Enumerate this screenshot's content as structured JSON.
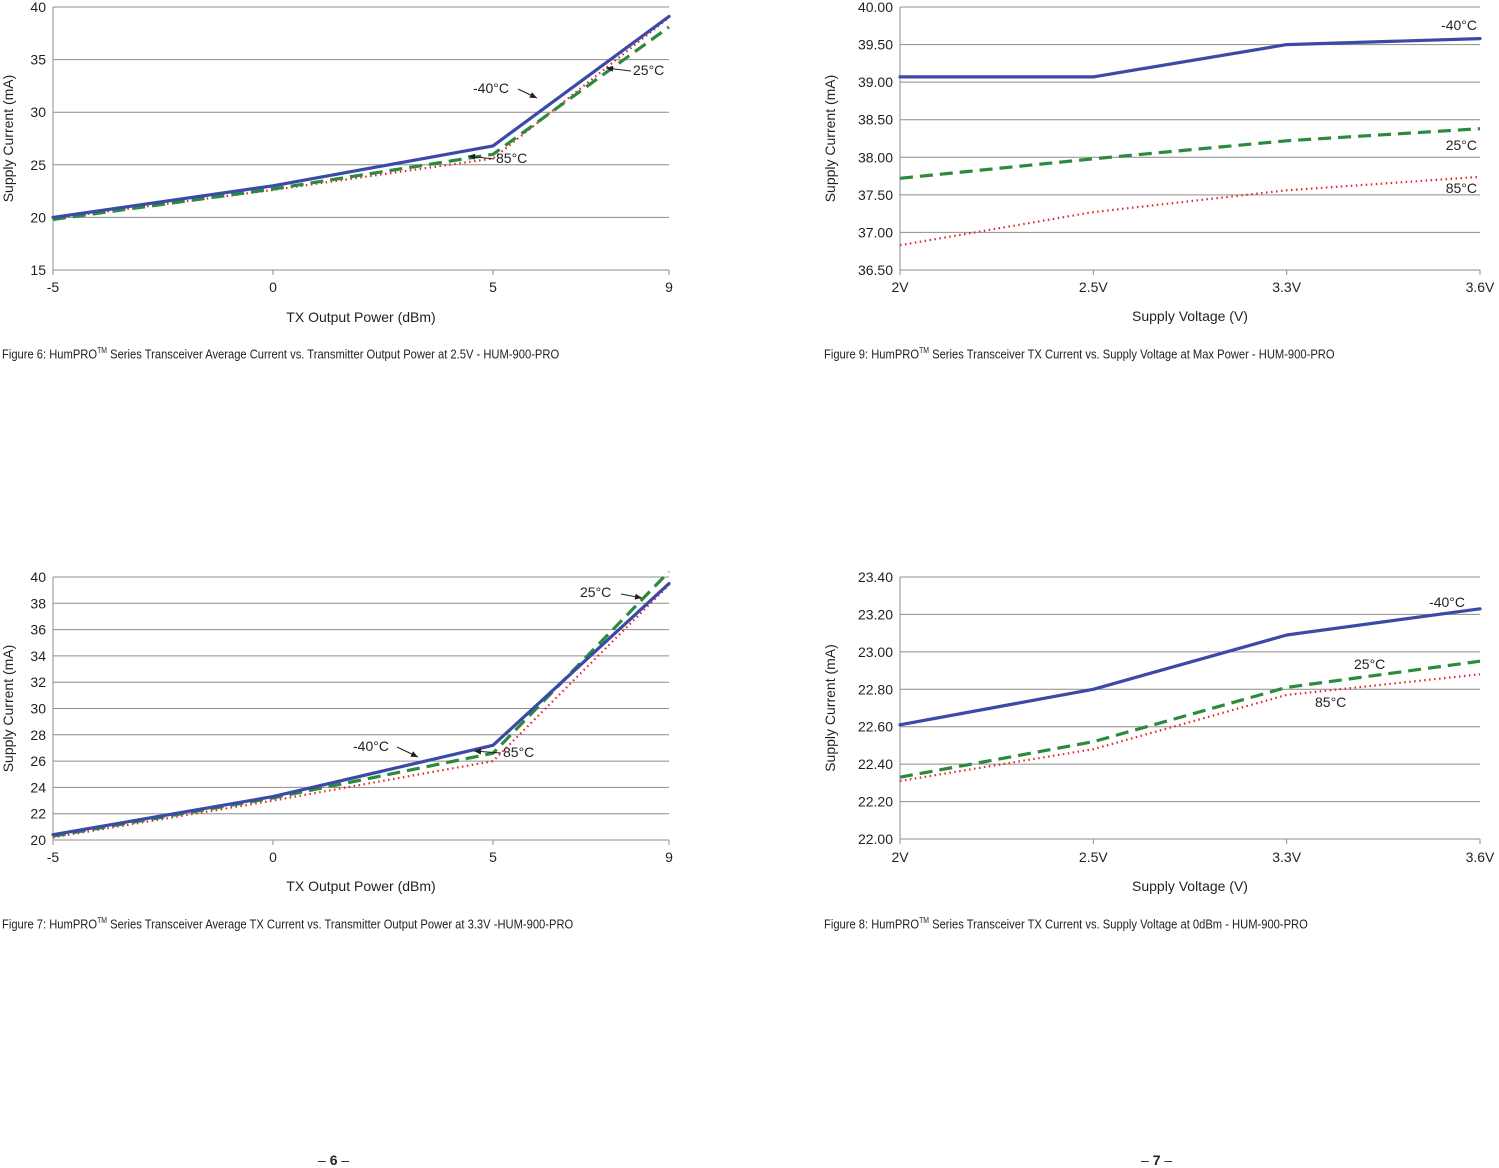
{
  "colors": {
    "minus40": "#3a4aa6",
    "c25": "#2b8a3e",
    "c85": "#e3232c",
    "grid": "#8c8c8c"
  },
  "pages": [
    {
      "dash_left": "–",
      "number": "6",
      "dash_right": "–"
    },
    {
      "dash_left": "–",
      "number": "7",
      "dash_right": "–"
    }
  ],
  "charts": [
    {
      "caption": {
        "pre": "Figure 6: HumPRO",
        "tm": "TM",
        "post": " Series Transceiver Average Current vs. Transmitter Output Power at 2.5V - HUM-900-PRO"
      },
      "annotations": [
        "-40°C",
        "25°C",
        "85°C"
      ]
    },
    {
      "caption": {
        "pre": "Figure 9: HumPRO",
        "tm": "TM",
        "post": " Series Transceiver TX Current vs. Supply Voltage at Max Power - HUM-900-PRO"
      },
      "annotations": [
        "-40°C",
        "25°C",
        "85°C"
      ]
    },
    {
      "caption": {
        "pre": "Figure 7: HumPRO",
        "tm": "TM",
        "post": " Series Transceiver Average TX Current vs. Transmitter Output Power at 3.3V -HUM-900-PRO"
      },
      "annotations": [
        "-40°C",
        "25°C",
        "85°C"
      ]
    },
    {
      "caption": {
        "pre": "Figure 8: HumPRO",
        "tm": "TM",
        "post": " Series Transceiver TX Current vs. Supply Voltage at 0dBm - HUM-900-PRO"
      },
      "annotations": [
        "-40°C",
        "25°C",
        "85°C"
      ]
    }
  ],
  "chart_data": [
    {
      "type": "line",
      "title": "",
      "xlabel": "TX Output Power (dBm)",
      "ylabel": "Supply Current (mA)",
      "x": [
        -5,
        0,
        5,
        9
      ],
      "x_ticks": [
        "-5",
        "0",
        "5",
        "9"
      ],
      "y_ticks": [
        "15",
        "20",
        "25",
        "30",
        "35",
        "40"
      ],
      "xlim": [
        -5,
        9
      ],
      "ylim": [
        15,
        40
      ],
      "series": [
        {
          "name": "-40°C",
          "style": "solid",
          "values": [
            20.0,
            23.0,
            26.8,
            39.1
          ]
        },
        {
          "name": "25°C",
          "style": "dashed",
          "values": [
            19.8,
            22.7,
            26.0,
            38.1
          ]
        },
        {
          "name": "85°C",
          "style": "dotted",
          "values": [
            19.9,
            22.6,
            25.6,
            39.0
          ]
        }
      ]
    },
    {
      "type": "line",
      "title": "",
      "xlabel": "Supply Voltage (V)",
      "ylabel": "Supply Current (mA)",
      "categories": [
        "2V",
        "2.5V",
        "3.3V",
        "3.6V"
      ],
      "y_ticks": [
        "36.50",
        "37.00",
        "37.50",
        "38.00",
        "38.50",
        "39.00",
        "39.50",
        "40.00"
      ],
      "ylim": [
        36.5,
        40.0
      ],
      "series": [
        {
          "name": "-40°C",
          "style": "solid",
          "values": [
            39.07,
            39.07,
            39.5,
            39.58
          ]
        },
        {
          "name": "25°C",
          "style": "dashed",
          "values": [
            37.72,
            37.98,
            38.22,
            38.38
          ]
        },
        {
          "name": "85°C",
          "style": "dotted",
          "values": [
            36.83,
            37.27,
            37.56,
            37.74
          ]
        }
      ]
    },
    {
      "type": "line",
      "title": "",
      "xlabel": "TX Output Power (dBm)",
      "ylabel": "Supply Current (mA)",
      "x": [
        -5,
        0,
        5,
        9
      ],
      "x_ticks": [
        "-5",
        "0",
        "5",
        "9"
      ],
      "y_ticks": [
        "20",
        "22",
        "24",
        "26",
        "28",
        "30",
        "32",
        "34",
        "36",
        "38",
        "40"
      ],
      "xlim": [
        -5,
        9
      ],
      "ylim": [
        20,
        40
      ],
      "series": [
        {
          "name": "-40°C",
          "style": "solid",
          "values": [
            20.4,
            23.3,
            27.2,
            39.5
          ]
        },
        {
          "name": "25°C",
          "style": "dashed",
          "values": [
            20.3,
            23.2,
            26.6,
            40.4
          ]
        },
        {
          "name": "85°C",
          "style": "dotted",
          "values": [
            20.2,
            23.0,
            26.0,
            39.4
          ]
        }
      ]
    },
    {
      "type": "line",
      "title": "",
      "xlabel": "Supply Voltage (V)",
      "ylabel": "Supply Current (mA)",
      "categories": [
        "2V",
        "2.5V",
        "3.3V",
        "3.6V"
      ],
      "y_ticks": [
        "22.00",
        "22.20",
        "22.40",
        "22.60",
        "22.80",
        "23.00",
        "23.20",
        "23.40"
      ],
      "ylim": [
        22.0,
        23.4
      ],
      "series": [
        {
          "name": "-40°C",
          "style": "solid",
          "values": [
            22.61,
            22.8,
            23.09,
            23.23
          ]
        },
        {
          "name": "25°C",
          "style": "dashed",
          "values": [
            22.33,
            22.52,
            22.81,
            22.95
          ]
        },
        {
          "name": "85°C",
          "style": "dotted",
          "values": [
            22.31,
            22.48,
            22.77,
            22.88
          ]
        }
      ]
    }
  ]
}
